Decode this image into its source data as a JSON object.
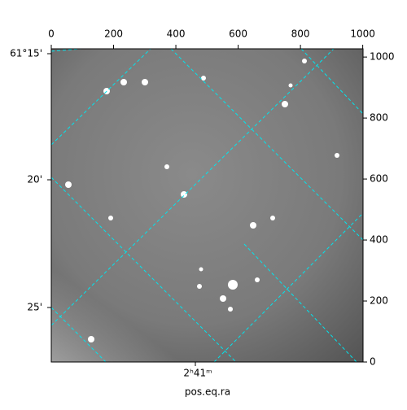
{
  "chart_data": {
    "type": "image",
    "xlabel": "pos.eq.ra",
    "xlim": [
      0,
      1001
    ],
    "ylim": [
      0,
      1027
    ],
    "xticks": [
      0,
      200,
      400,
      600,
      800,
      1000
    ],
    "yticks": [
      0,
      200,
      400,
      600,
      800,
      1000
    ],
    "dec_tick_labels": [
      "61°15'",
      "20'",
      "25'"
    ],
    "ra_tick_labels": [
      "2ʰ41ᵐ"
    ],
    "grid_color": "#00e5ee"
  }
}
